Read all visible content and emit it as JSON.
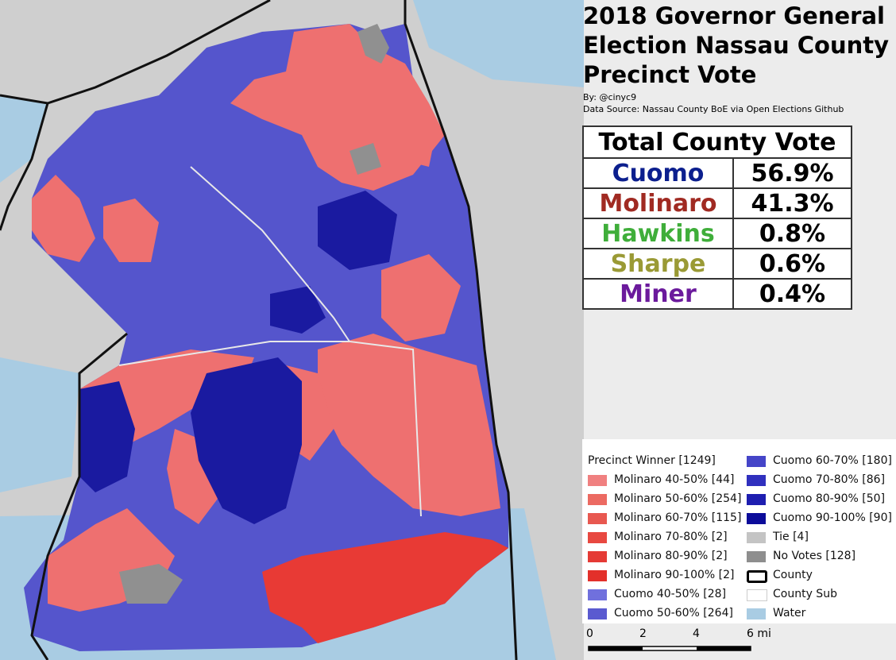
{
  "title": "2018 Governor General Election Nassau County Precinct Vote",
  "byline": "By: @cinyc9",
  "source": "Data Source: Nassau County BoE via Open Elections Github",
  "results_table": {
    "header": "Total County Vote",
    "rows": [
      [
        "Cuomo",
        "56.9%"
      ],
      [
        "Molinaro",
        "41.3%"
      ],
      [
        "Hawkins",
        "0.8%"
      ],
      [
        "Sharpe",
        "0.6%"
      ],
      [
        "Miner",
        "0.4%"
      ]
    ]
  },
  "legend": {
    "title": "Precinct Winner [1249]",
    "items": [
      "Molinaro 40-50% [44]",
      "Molinaro 50-60% [254]",
      "Molinaro 60-70% [115]",
      "Molinaro 70-80% [2]",
      "Molinaro 80-90% [2]",
      "Molinaro 90-100% [2]",
      "Cuomo 40-50% [28]",
      "Cuomo 50-60% [264]",
      "Cuomo 60-70% [180]",
      "Cuomo 70-80% [86]",
      "Cuomo 80-90% [50]",
      "Cuomo 90-100% [90]",
      "Tie [4]",
      "No Votes [128]",
      "County",
      "County Sub",
      "Water"
    ]
  },
  "scale_bar": {
    "labels": [
      "0",
      "2",
      "4",
      "6 mi"
    ]
  }
}
